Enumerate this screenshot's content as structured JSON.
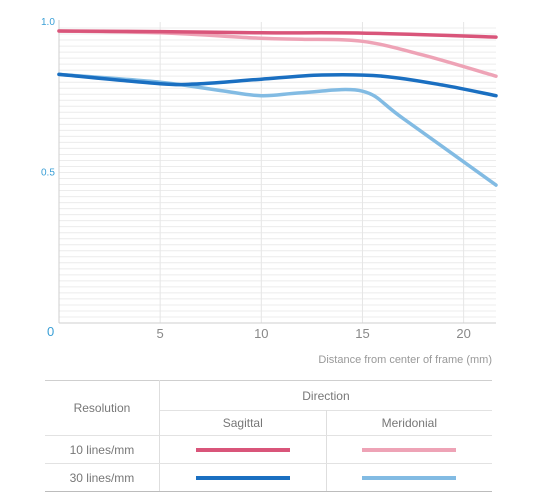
{
  "chart_data": {
    "type": "line",
    "title": "",
    "xlabel": "Distance from center of frame (mm)",
    "ylabel": "",
    "xlim": [
      0,
      21.6
    ],
    "ylim": [
      0,
      1.0
    ],
    "x_ticks": [
      {
        "value": 5,
        "label": "5"
      },
      {
        "value": 10,
        "label": "10"
      },
      {
        "value": 15,
        "label": "15"
      },
      {
        "value": 20,
        "label": "20"
      }
    ],
    "y_ticks": [
      {
        "value": 0,
        "label": "0"
      },
      {
        "value": 0.5,
        "label": "0.5"
      },
      {
        "value": 1.0,
        "label": "1.0"
      }
    ],
    "grid": true,
    "series": [
      {
        "name": "10 lines/mm Sagittal",
        "color": "#d9557a",
        "points": [
          [
            0,
            0.97
          ],
          [
            5,
            0.968
          ],
          [
            10,
            0.964
          ],
          [
            15,
            0.963
          ],
          [
            21.6,
            0.95
          ]
        ]
      },
      {
        "name": "10 lines/mm Meridonial",
        "color": "#eea3b6",
        "points": [
          [
            0,
            0.97
          ],
          [
            5,
            0.964
          ],
          [
            10,
            0.946
          ],
          [
            12,
            0.943
          ],
          [
            15,
            0.936
          ],
          [
            18,
            0.89
          ],
          [
            21.6,
            0.82
          ]
        ]
      },
      {
        "name": "30 lines/mm Sagittal",
        "color": "#1a6fc1",
        "points": [
          [
            0,
            0.826
          ],
          [
            5,
            0.795
          ],
          [
            7,
            0.795
          ],
          [
            10,
            0.81
          ],
          [
            13,
            0.824
          ],
          [
            16,
            0.82
          ],
          [
            19,
            0.79
          ],
          [
            21.6,
            0.755
          ]
        ]
      },
      {
        "name": "30 lines/mm Meridonial",
        "color": "#82bbe3",
        "points": [
          [
            0,
            0.826
          ],
          [
            5,
            0.8
          ],
          [
            8,
            0.772
          ],
          [
            10,
            0.755
          ],
          [
            12,
            0.765
          ],
          [
            15,
            0.77
          ],
          [
            17,
            0.68
          ],
          [
            21.6,
            0.458
          ]
        ]
      }
    ]
  },
  "legend": {
    "resolution_header": "Resolution",
    "direction_header": "Direction",
    "sagittal_header": "Sagittal",
    "meridonial_header": "Meridonial",
    "rows": [
      {
        "label": "10 lines/mm",
        "sagittal_color": "#d9557a",
        "meridonial_color": "#eea3b6"
      },
      {
        "label": "30 lines/mm",
        "sagittal_color": "#1a6fc1",
        "meridonial_color": "#82bbe3"
      }
    ]
  }
}
